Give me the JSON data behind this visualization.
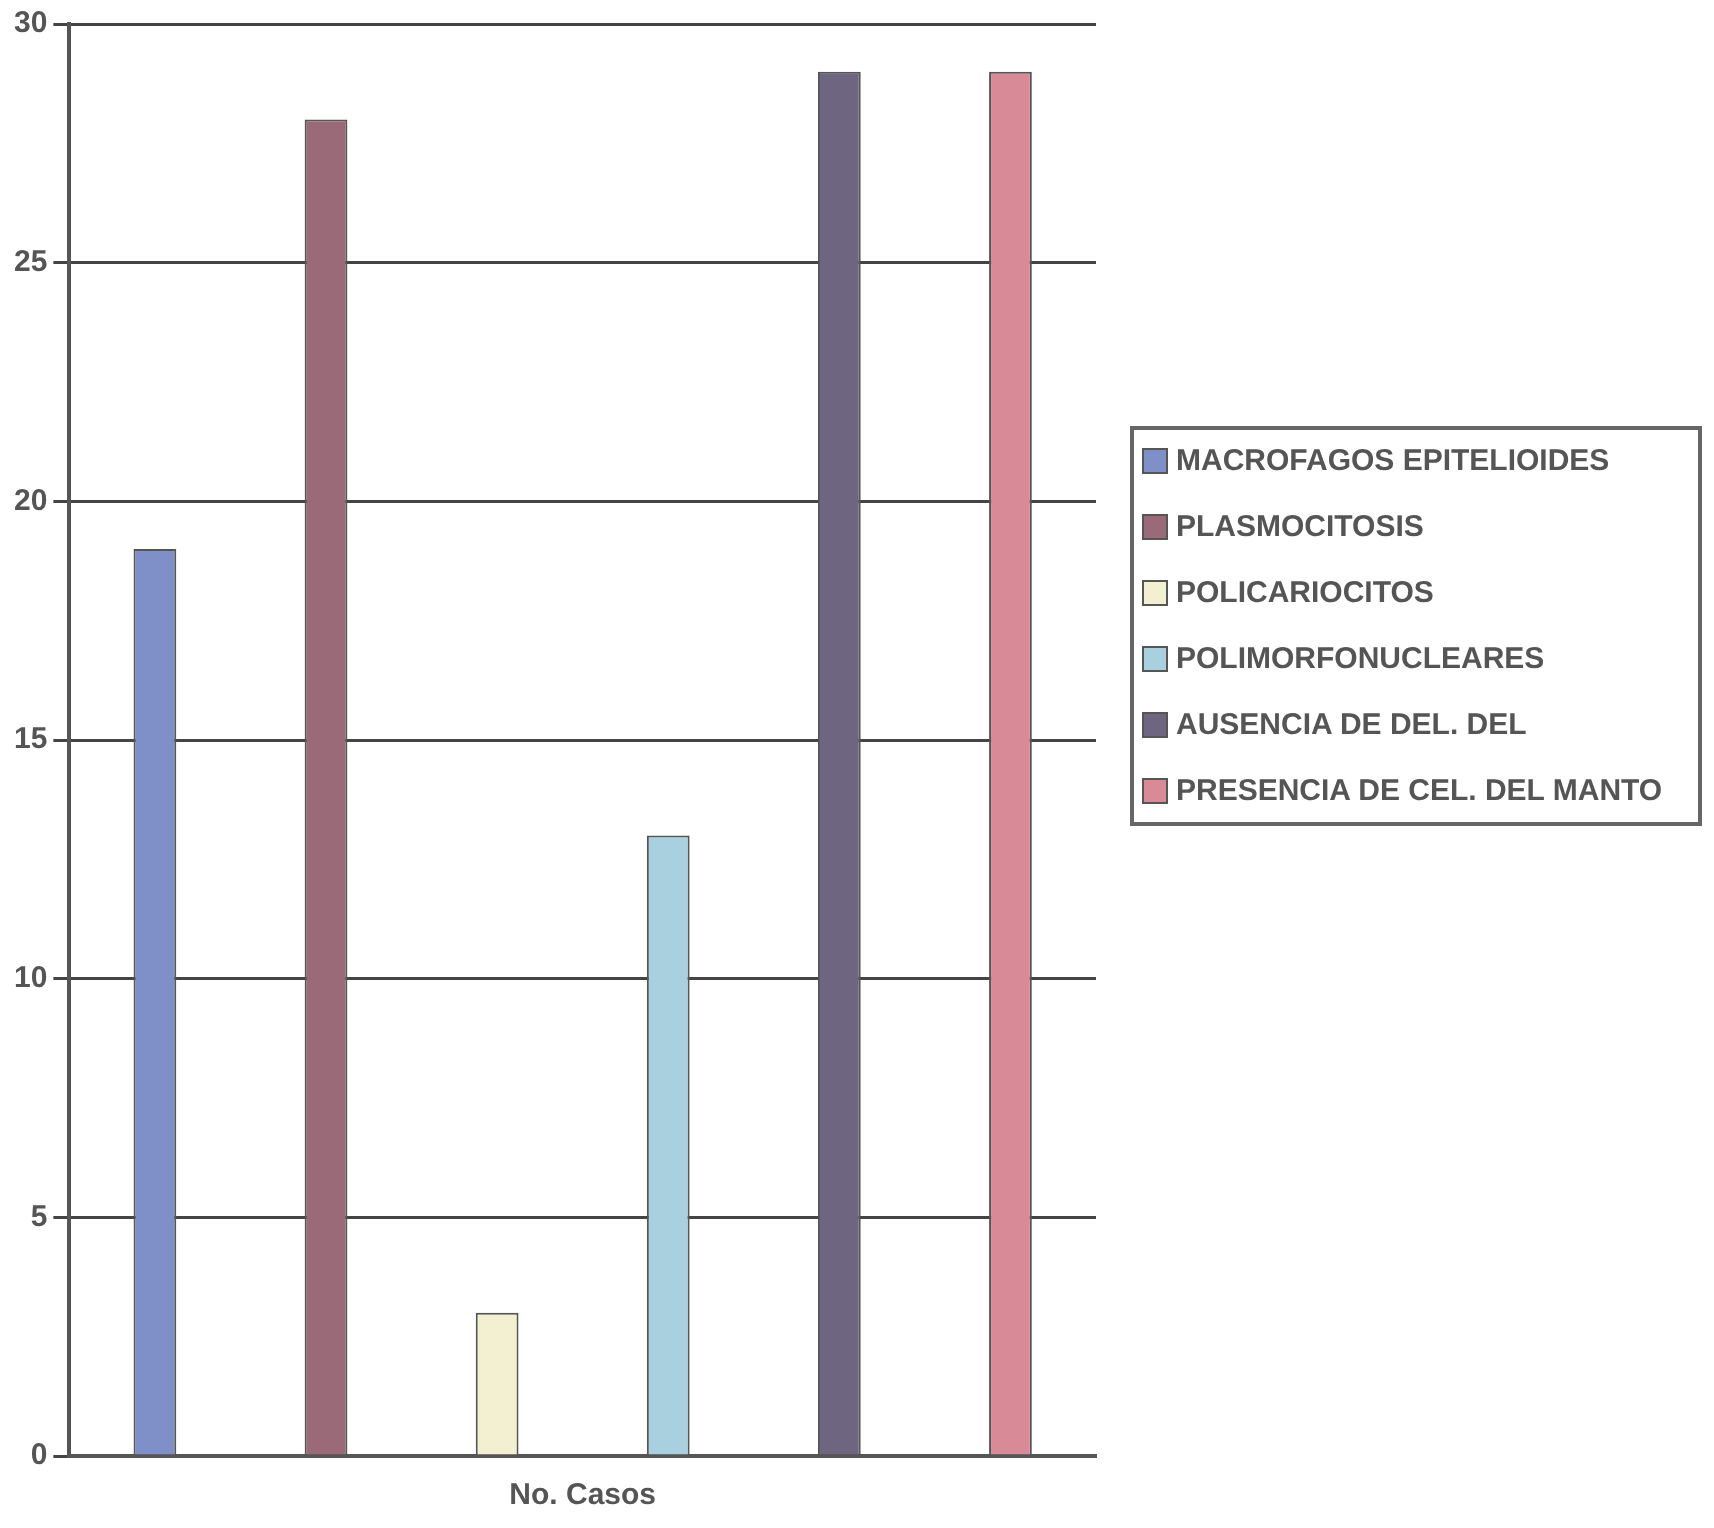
{
  "chart_data": {
    "type": "bar",
    "categories": [
      "No. Casos"
    ],
    "series": [
      {
        "name": "MACROFAGOS EPITELIOIDES",
        "color": "#7f8fc8",
        "values": [
          19
        ]
      },
      {
        "name": "PLASMOCITOSIS",
        "color": "#9a6a78",
        "values": [
          28
        ]
      },
      {
        "name": "POLICARIOCITOS",
        "color": "#f2f0d0",
        "values": [
          3
        ]
      },
      {
        "name": "POLIMORFONUCLEARES",
        "color": "#a8d0de",
        "values": [
          13
        ]
      },
      {
        "name": "AUSENCIA DE DEL. DEL",
        "color": "#6e6680",
        "values": [
          29
        ]
      },
      {
        "name": "PRESENCIA DE CEL. DEL MANTO",
        "color": "#d88a96",
        "values": [
          29
        ]
      }
    ],
    "ylim": [
      0,
      30
    ],
    "yticks": [
      0,
      5,
      10,
      15,
      20,
      25,
      30
    ],
    "grid": "y",
    "legend": "right"
  }
}
